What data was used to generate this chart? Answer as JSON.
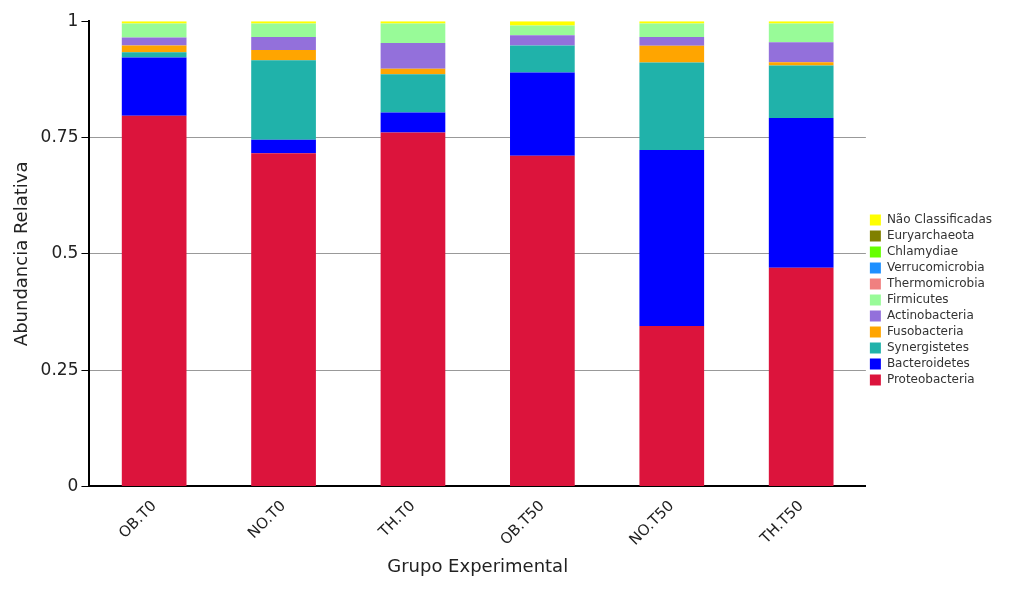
{
  "chart_data": {
    "type": "bar",
    "stacked": true,
    "xlabel": "Grupo Experimental",
    "ylabel": "Abundancia Relativa",
    "categories": [
      "OB.T0",
      "NO.T0",
      "TH.T0",
      "OB.T50",
      "NO.T50",
      "TH.T50"
    ],
    "series": [
      {
        "name": "Proteobacteria",
        "color": "#dc143c",
        "values": [
          0.797,
          0.716,
          0.761,
          0.711,
          0.345,
          0.47
        ]
      },
      {
        "name": "Bacteroidetes",
        "color": "#0000ff",
        "values": [
          0.125,
          0.029,
          0.043,
          0.179,
          0.378,
          0.322
        ]
      },
      {
        "name": "Synergistetes",
        "color": "#20b2aa",
        "values": [
          0.011,
          0.171,
          0.082,
          0.058,
          0.188,
          0.113
        ]
      },
      {
        "name": "Fusobacteria",
        "color": "#ffa500",
        "values": [
          0.015,
          0.022,
          0.012,
          0,
          0.036,
          0.007
        ]
      },
      {
        "name": "Actinobacteria",
        "color": "#9370db",
        "values": [
          0.017,
          0.028,
          0.055,
          0.022,
          0.019,
          0.043
        ]
      },
      {
        "name": "Firmicutes",
        "color": "#98fb98",
        "values": [
          0.03,
          0.029,
          0.042,
          0.021,
          0.029,
          0.04
        ]
      },
      {
        "name": "Thermomicrobia",
        "color": "#f08080",
        "values": [
          0,
          0,
          0,
          0,
          0,
          0
        ]
      },
      {
        "name": "Verrucomicrobia",
        "color": "#1e90ff",
        "values": [
          0,
          0,
          0,
          0,
          0,
          0
        ]
      },
      {
        "name": "Chlamydiae",
        "color": "#66ff00",
        "values": [
          0,
          0,
          0,
          0,
          0,
          0
        ]
      },
      {
        "name": "Euryarchaeota",
        "color": "#808000",
        "values": [
          0,
          0,
          0,
          0,
          0,
          0
        ]
      },
      {
        "name": "Não Classificadas",
        "color": "#ffff00",
        "values": [
          0.005,
          0.005,
          0.005,
          0.009,
          0.005,
          0.005
        ]
      }
    ],
    "ylim": [
      0,
      1
    ],
    "yticks": [
      0,
      0.25,
      0.5,
      0.75,
      1
    ],
    "grid": "y",
    "legend": "right"
  }
}
